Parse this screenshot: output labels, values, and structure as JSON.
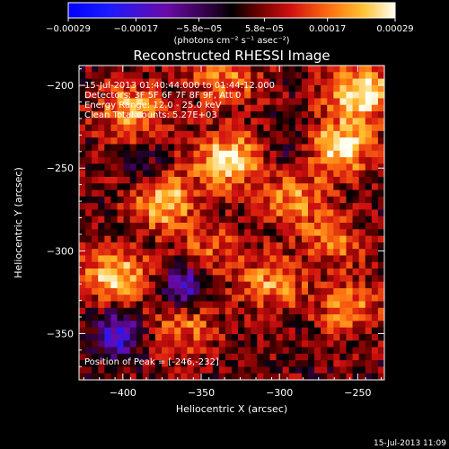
{
  "colorbar": {
    "tick_labels": [
      "-0.00029",
      "-0.00017",
      "-5.8e-05",
      "5.8e-05",
      "0.00017",
      "0.00029"
    ],
    "tick_values": [
      -0.00029,
      -0.00017,
      -5.8e-05,
      5.8e-05,
      0.00017,
      0.00029
    ],
    "range": [
      -0.00029,
      0.00029
    ],
    "units_text": "(photons cm⁻² s⁻¹ asec⁻²)"
  },
  "chart_data": {
    "type": "heatmap",
    "title": "Reconstructed RHESSI Image",
    "xlabel": "Heliocentric X (arcsec)",
    "ylabel": "Heliocentric Y (arcsec)",
    "xlim": [
      -428,
      -233
    ],
    "ylim": [
      -378,
      -188
    ],
    "x_ticks": [
      -400,
      -350,
      -300,
      -250
    ],
    "x_tick_labels": [
      "-400",
      "-350",
      "-300",
      "-250"
    ],
    "y_ticks": [
      -350,
      -300,
      -250,
      -200
    ],
    "y_tick_labels": [
      "-350",
      "-300",
      "-250",
      "-200"
    ],
    "value_range": [
      -0.00029,
      0.00029
    ],
    "annotations": [
      "15-Jul-2013 01:40:44.000 to 01:44:12.000",
      "Detectors: 3F 5F 6F 7F 8F 9F, Att 0",
      "Energy Range: 12.0 - 25.0 keV",
      "Clean    Total counts: 5.27E+03"
    ],
    "peak_label": "Position of Peak = [-246,-232]",
    "peak_position": [
      -246,
      -232
    ],
    "sources": [
      {
        "x": -248,
        "y": -205,
        "amp": 1.0
      },
      {
        "x": -262,
        "y": -238,
        "amp": 0.9
      },
      {
        "x": -333,
        "y": -245,
        "amp": 0.95
      },
      {
        "x": -375,
        "y": -270,
        "amp": 0.85
      },
      {
        "x": -405,
        "y": -315,
        "amp": 0.8
      },
      {
        "x": -395,
        "y": -215,
        "amp": 0.7
      },
      {
        "x": -335,
        "y": -195,
        "amp": 0.55
      },
      {
        "x": -290,
        "y": -270,
        "amp": 0.6
      },
      {
        "x": -305,
        "y": -320,
        "amp": 0.6
      },
      {
        "x": -255,
        "y": -335,
        "amp": 0.55
      },
      {
        "x": -360,
        "y": -345,
        "amp": 0.5
      },
      {
        "x": -265,
        "y": -295,
        "amp": 0.45
      },
      {
        "x": -345,
        "y": -300,
        "amp": 0.4
      }
    ],
    "negatives": [
      {
        "x": -403,
        "y": -350,
        "amp": 0.9
      },
      {
        "x": -360,
        "y": -322,
        "amp": 0.8
      },
      {
        "x": -385,
        "y": -255,
        "amp": 0.35
      },
      {
        "x": -290,
        "y": -235,
        "amp": 0.3
      }
    ]
  },
  "footer": {
    "timestamp": "15-Jul-2013 11:09"
  }
}
